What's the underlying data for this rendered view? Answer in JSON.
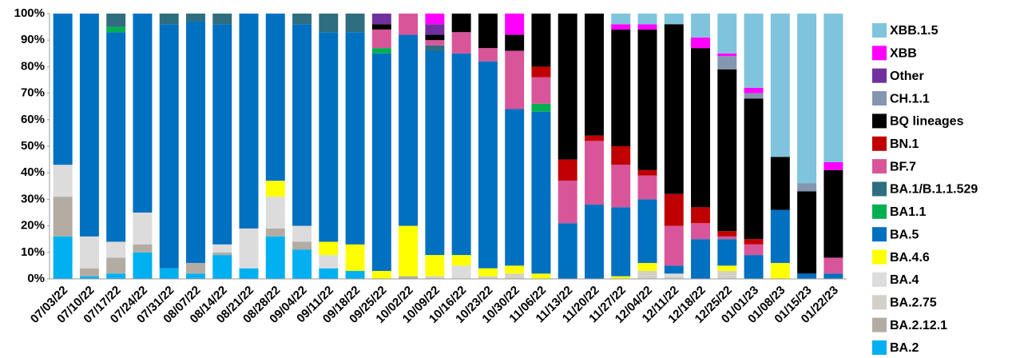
{
  "chart_data": {
    "type": "stacked_bar",
    "categories": [
      "07/03/22",
      "07/10/22",
      "07/17/22",
      "07/24/22",
      "07/31/22",
      "08/07/22",
      "08/14/22",
      "08/21/22",
      "08/28/22",
      "09/04/22",
      "09/11/22",
      "09/18/22",
      "09/25/22",
      "10/02/22",
      "10/09/22",
      "10/16/22",
      "10/23/22",
      "10/30/22",
      "11/06/22",
      "11/13/22",
      "11/20/22",
      "11/27/22",
      "12/04/22",
      "12/11/22",
      "12/18/22",
      "12/25/22",
      "01/01/23",
      "01/08/23",
      "01/15/23",
      "01/22/23"
    ],
    "series": [
      {
        "name": "BA.2",
        "color": "#00b0f0",
        "values": [
          16,
          1,
          2,
          10,
          4,
          2,
          9,
          4,
          16,
          11,
          4,
          3,
          0,
          0,
          0,
          0,
          0,
          0,
          0,
          0,
          0,
          0,
          0,
          0,
          0,
          0,
          0,
          0,
          0,
          0
        ]
      },
      {
        "name": "BA.2.12.1",
        "color": "#b3aca3",
        "values": [
          15,
          3,
          6,
          3,
          0,
          4,
          1,
          0,
          3,
          3,
          0,
          0,
          0,
          1,
          0,
          0,
          0,
          0,
          0,
          0,
          0,
          0,
          0,
          0,
          0,
          0,
          0,
          0,
          0,
          0
        ]
      },
      {
        "name": "BA.2.75",
        "color": "#d3d0c8",
        "values": [
          0,
          0,
          0,
          0,
          0,
          0,
          0,
          0,
          0,
          0,
          0,
          0,
          0,
          0,
          1,
          0,
          1,
          2,
          0,
          0,
          0,
          0,
          3,
          1,
          0,
          3,
          0,
          0,
          0,
          0
        ]
      },
      {
        "name": "BA.4",
        "color": "#dcdcdc",
        "values": [
          12,
          12,
          6,
          12,
          0,
          0,
          3,
          15,
          12,
          6,
          5,
          0,
          0,
          0,
          0,
          5,
          0,
          0,
          0,
          0,
          0,
          0,
          0,
          1,
          0,
          0,
          0,
          0,
          0,
          0
        ]
      },
      {
        "name": "BA.4.6",
        "color": "#ffff00",
        "values": [
          0,
          0,
          0,
          0,
          0,
          0,
          0,
          0,
          6,
          0,
          5,
          10,
          3,
          19,
          8,
          4,
          3,
          3,
          2,
          0,
          0,
          1,
          3,
          0,
          0,
          2,
          0,
          6,
          0,
          0
        ]
      },
      {
        "name": "BA.5",
        "color": "#0070c0",
        "values": [
          57,
          84,
          79,
          75,
          92,
          91,
          83,
          81,
          63,
          76,
          79,
          80,
          82,
          72,
          77,
          76,
          78,
          59,
          61,
          21,
          28,
          26,
          24,
          3,
          15,
          10,
          9,
          20,
          2,
          2
        ]
      },
      {
        "name": "BA1.1",
        "color": "#00b050",
        "values": [
          0,
          0,
          2,
          0,
          0,
          0,
          0,
          0,
          0,
          0,
          0,
          0,
          2,
          0,
          0,
          0,
          0,
          0,
          3,
          0,
          0,
          0,
          0,
          0,
          0,
          0,
          0,
          0,
          0,
          0
        ]
      },
      {
        "name": "BA.1/B.1.1.529",
        "color": "#2e6e80",
        "values": [
          0,
          0,
          5,
          0,
          4,
          3,
          4,
          0,
          0,
          4,
          7,
          7,
          0,
          0,
          2,
          0,
          0,
          0,
          0,
          0,
          0,
          0,
          0,
          0,
          0,
          0,
          0,
          0,
          0,
          0
        ]
      },
      {
        "name": "BF.7",
        "color": "#d9559a",
        "values": [
          0,
          0,
          0,
          0,
          0,
          0,
          0,
          0,
          0,
          0,
          0,
          0,
          7,
          8,
          2,
          8,
          5,
          22,
          10,
          16,
          24,
          16,
          9,
          15,
          6,
          1,
          4,
          0,
          0,
          6
        ]
      },
      {
        "name": "BN.1",
        "color": "#c00000",
        "values": [
          0,
          0,
          0,
          0,
          0,
          0,
          0,
          0,
          0,
          0,
          0,
          0,
          0,
          0,
          0,
          0,
          0,
          0,
          4,
          8,
          2,
          7,
          2,
          12,
          6,
          2,
          2,
          0,
          0,
          0
        ]
      },
      {
        "name": "BQ lineages",
        "color": "#000000",
        "values": [
          0,
          0,
          0,
          0,
          0,
          0,
          0,
          0,
          0,
          0,
          0,
          0,
          2,
          0,
          2,
          7,
          13,
          6,
          20,
          55,
          46,
          44,
          53,
          64,
          60,
          61,
          53,
          20,
          31,
          33
        ]
      },
      {
        "name": "CH.1.1",
        "color": "#8497b0",
        "values": [
          0,
          0,
          0,
          0,
          0,
          0,
          0,
          0,
          0,
          0,
          0,
          0,
          0,
          0,
          0,
          0,
          0,
          0,
          0,
          0,
          0,
          0,
          0,
          0,
          0,
          5,
          2,
          0,
          3,
          0
        ]
      },
      {
        "name": "Other",
        "color": "#7030a0",
        "values": [
          0,
          0,
          0,
          0,
          0,
          0,
          0,
          0,
          0,
          0,
          0,
          0,
          4,
          0,
          4,
          0,
          0,
          0,
          0,
          0,
          0,
          0,
          0,
          0,
          0,
          0,
          0,
          0,
          0,
          0
        ]
      },
      {
        "name": "XBB",
        "color": "#ff00ff",
        "values": [
          0,
          0,
          0,
          0,
          0,
          0,
          0,
          0,
          0,
          0,
          0,
          0,
          0,
          0,
          4,
          0,
          0,
          8,
          0,
          0,
          0,
          2,
          2,
          0,
          4,
          1,
          2,
          0,
          0,
          3
        ]
      },
      {
        "name": "XBB.1.5",
        "color": "#7fc4dc",
        "values": [
          0,
          0,
          0,
          0,
          0,
          0,
          0,
          0,
          0,
          0,
          0,
          0,
          0,
          0,
          0,
          0,
          0,
          0,
          0,
          0,
          0,
          4,
          4,
          4,
          9,
          15,
          28,
          54,
          64,
          56
        ]
      }
    ],
    "ylim": [
      0,
      100
    ],
    "yticks": [
      {
        "value": 0,
        "label": "0%"
      },
      {
        "value": 10,
        "label": "10%"
      },
      {
        "value": 20,
        "label": "20%"
      },
      {
        "value": 30,
        "label": "30%"
      },
      {
        "value": 40,
        "label": "40%"
      },
      {
        "value": 50,
        "label": "50%"
      },
      {
        "value": 60,
        "label": "60%"
      },
      {
        "value": 70,
        "label": "70%"
      },
      {
        "value": 80,
        "label": "80%"
      },
      {
        "value": 90,
        "label": "90%"
      },
      {
        "value": 100,
        "label": "100%"
      }
    ],
    "grid": false,
    "legend": "right"
  }
}
